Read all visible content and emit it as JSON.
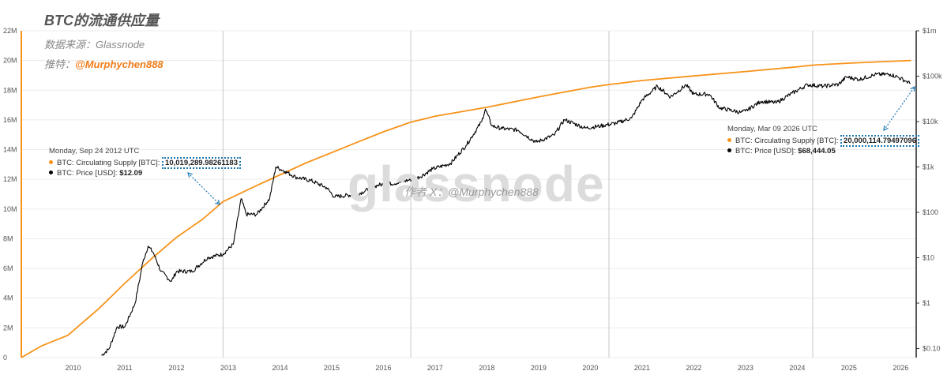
{
  "title": "BTC的流通供应量",
  "source_label": "数据来源：Glassnode",
  "author_prefix": "推特：",
  "author_handle": "@Murphychen888",
  "watermark": "glassnode",
  "watermark_author": "作者 X：@Murphychen888",
  "colors": {
    "supply": "#f7931a",
    "price": "#000000",
    "accent": "#1f78b4",
    "grid": "#ececec",
    "handle": "#f07c1a"
  },
  "tooltip_left": {
    "date": "Monday, Sep 24 2012 UTC",
    "supply_label": "BTC: Circulating Supply [BTC]:",
    "supply_value": "10,019,289.98261183",
    "price_label": "BTC: Price [USD]:",
    "price_value": "$12.09"
  },
  "tooltip_right": {
    "date": "Monday, Mar 09 2026 UTC",
    "supply_label": "BTC: Circulating Supply [BTC]:",
    "supply_value": "20,000,114.79497096",
    "price_label": "BTC: Price [USD]:",
    "price_value": "$68,444.05"
  },
  "chart_data": {
    "type": "line",
    "title": "BTC的流通供应量",
    "x_ticks": [
      "2010",
      "2011",
      "2012",
      "2013",
      "2014",
      "2015",
      "2016",
      "2017",
      "2018",
      "2019",
      "2020",
      "2021",
      "2022",
      "2023",
      "2024",
      "2025",
      "2026"
    ],
    "x_range": [
      2009.0,
      2026.3
    ],
    "y_left_ticks": [
      "0",
      "2M",
      "4M",
      "6M",
      "8M",
      "10M",
      "12M",
      "14M",
      "16M",
      "18M",
      "20M",
      "22M"
    ],
    "y_left_range": [
      0,
      22000000
    ],
    "y_right_ticks": [
      "$0.10",
      "$1",
      "$10",
      "$100",
      "$1k",
      "$10k",
      "$100k",
      "$1m"
    ],
    "y_right_range_log10": [
      -1.2,
      6.0
    ],
    "halving_lines": [
      2012.9,
      2016.53,
      2020.36,
      2024.3
    ],
    "series": [
      {
        "name": "BTC: Circulating Supply [BTC]",
        "axis": "left",
        "x": [
          2009.0,
          2009.4,
          2009.9,
          2010.5,
          2011.0,
          2011.5,
          2012.0,
          2012.5,
          2012.9,
          2013.5,
          2014.0,
          2014.5,
          2015.0,
          2015.5,
          2016.0,
          2016.53,
          2017.0,
          2018.0,
          2019.0,
          2020.0,
          2020.36,
          2021.0,
          2022.0,
          2023.0,
          2024.0,
          2024.3,
          2025.0,
          2026.2
        ],
        "values": [
          0,
          800000,
          1500000,
          3300000,
          5000000,
          6600000,
          8100000,
          9300000,
          10500000,
          11500000,
          12300000,
          13100000,
          13800000,
          14500000,
          15200000,
          15850000,
          16250000,
          16850000,
          17550000,
          18200000,
          18380000,
          18650000,
          18960000,
          19260000,
          19570000,
          19690000,
          19820000,
          20000000
        ]
      },
      {
        "name": "BTC: Price [USD]",
        "axis": "right",
        "x": [
          2010.55,
          2010.7,
          2010.85,
          2011.0,
          2011.2,
          2011.35,
          2011.45,
          2011.55,
          2011.7,
          2011.9,
          2012.0,
          2012.3,
          2012.6,
          2012.9,
          2013.1,
          2013.25,
          2013.35,
          2013.55,
          2013.8,
          2013.92,
          2014.1,
          2014.3,
          2014.6,
          2014.9,
          2015.05,
          2015.5,
          2015.9,
          2016.3,
          2016.7,
          2016.95,
          2017.3,
          2017.6,
          2017.9,
          2017.97,
          2018.1,
          2018.3,
          2018.6,
          2018.95,
          2019.3,
          2019.5,
          2019.9,
          2020.2,
          2020.5,
          2020.8,
          2021.0,
          2021.3,
          2021.55,
          2021.85,
          2022.0,
          2022.3,
          2022.5,
          2022.9,
          2023.0,
          2023.3,
          2023.6,
          2023.9,
          2024.2,
          2024.5,
          2024.8,
          2024.95,
          2025.2,
          2025.5,
          2025.8,
          2025.95,
          2026.1,
          2026.19
        ],
        "values": [
          0.07,
          0.1,
          0.3,
          0.3,
          1,
          8,
          18,
          13,
          5,
          3,
          5,
          5,
          10,
          12.09,
          20,
          200,
          90,
          90,
          200,
          1000,
          800,
          600,
          500,
          350,
          220,
          250,
          400,
          450,
          600,
          900,
          1200,
          3000,
          10000,
          19000,
          8000,
          7000,
          6500,
          3500,
          5000,
          11000,
          7200,
          8000,
          9200,
          12000,
          30000,
          60000,
          35000,
          64000,
          40000,
          40000,
          20000,
          16000,
          17000,
          28000,
          26000,
          42000,
          65000,
          60000,
          66000,
          96000,
          85000,
          108000,
          110000,
          95000,
          78000,
          68444.05
        ]
      }
    ]
  }
}
